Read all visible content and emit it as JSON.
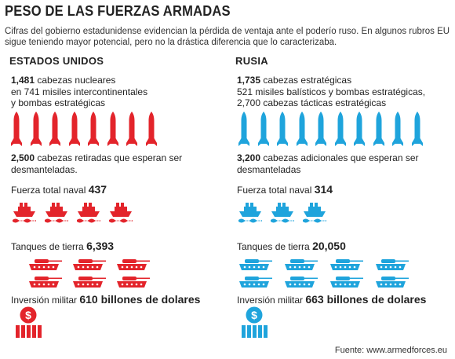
{
  "title": "PESO DE LAS FUERZAS ARMADAS",
  "subtitle": "Cifras del gobierno estadunidense evidencian la pérdida de ventaja ante el poderío ruso. En algunos rubros EU sigue teniendo mayor potencial, pero no la drástica diferencia que lo caracterizaba.",
  "colors": {
    "us": "#e3242b",
    "ru": "#1fa4dc"
  },
  "us": {
    "country": "ESTADOS UNIDOS",
    "warheads_num": "1,481",
    "warheads_text": " cabezas nucleares",
    "warheads_line2": "en 741 misiles intercontinentales",
    "warheads_line3": "y bombas estratégicas",
    "missile_count": 8,
    "retired_num": "2,500",
    "retired_text": " cabezas retiradas que esperan ser",
    "retired_line2": "desmanteladas.",
    "naval_label": "Fuerza total naval ",
    "naval_value": "437",
    "ship_count": 4,
    "tanks_label": "Tanques de tierra ",
    "tanks_value": "6,393",
    "tank_count": 6,
    "spend_label": "Inversión militar ",
    "spend_value": "610 billones de dolares",
    "money_icon": "money-bag-icon"
  },
  "ru": {
    "country": "RUSIA",
    "warheads_num": "1,735",
    "warheads_text": " cabezas estratégicas",
    "warheads_line2": "521 misiles balísticos y bombas estratégicas,",
    "warheads_line3": "2,700 cabezas tácticas estratégicas",
    "missile_count": 10,
    "retired_num": "3,200",
    "retired_text": " cabezas adicionales que esperan ser",
    "retired_line2": "desmanteladas",
    "naval_label": "Fuerza total naval ",
    "naval_value": "314",
    "ship_count": 3,
    "tanks_label": "Tanques de tierra ",
    "tanks_value": "20,050",
    "tank_count": 8,
    "spend_label": "Inversión militar ",
    "spend_value": "663 billones de dolares",
    "money_icon": "money-bag-icon"
  },
  "source": "Fuente: www.armedforces.eu"
}
